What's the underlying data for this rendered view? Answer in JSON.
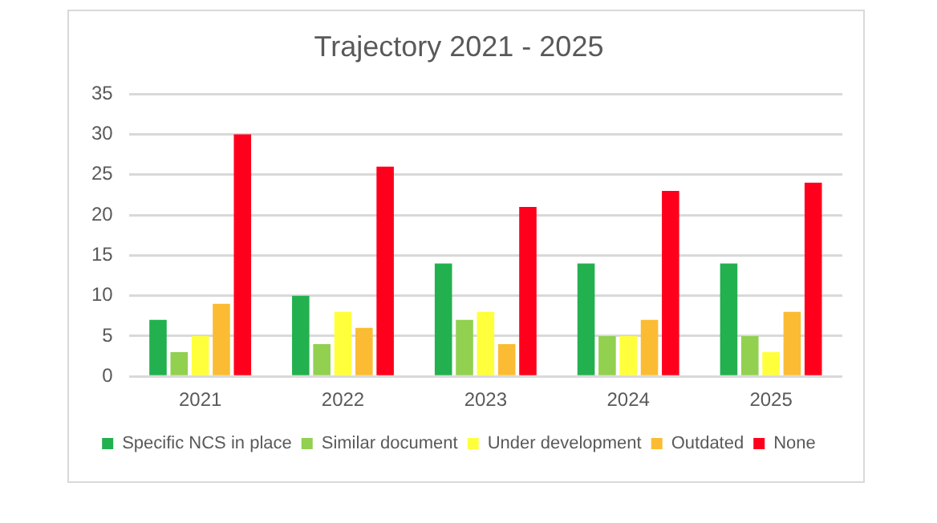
{
  "chart_data": {
    "type": "bar",
    "title": "Trajectory 2021 - 2025",
    "categories": [
      "2021",
      "2022",
      "2023",
      "2024",
      "2025"
    ],
    "series": [
      {
        "name": "Specific NCS in place",
        "color": "#23b04f",
        "values": [
          7,
          10,
          14,
          14,
          14
        ]
      },
      {
        "name": "Similar document",
        "color": "#92d050",
        "values": [
          3,
          4,
          7,
          5,
          5
        ]
      },
      {
        "name": "Under development",
        "color": "#ffff3c",
        "values": [
          5,
          8,
          8,
          5,
          3
        ]
      },
      {
        "name": "Outdated",
        "color": "#fbbc34",
        "values": [
          9,
          6,
          4,
          7,
          8
        ]
      },
      {
        "name": "None",
        "color": "#ff001c",
        "values": [
          30,
          26,
          21,
          23,
          24
        ]
      }
    ],
    "ylim": [
      0,
      35
    ],
    "yticks": [
      0,
      5,
      10,
      15,
      20,
      25,
      30,
      35
    ],
    "grid": "y",
    "legend": "bottom"
  }
}
